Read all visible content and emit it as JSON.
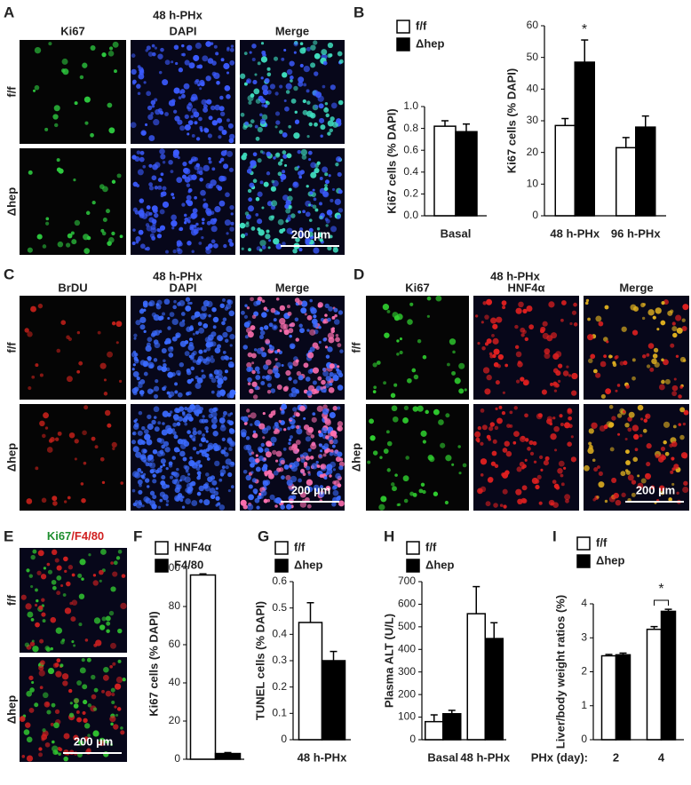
{
  "panel_labels": [
    "A",
    "B",
    "C",
    "D",
    "E",
    "F",
    "G",
    "H",
    "I"
  ],
  "microscopy": [
    {
      "title": "48 h-PHx",
      "channels": [
        "Ki67",
        "DAPI",
        "Merge"
      ],
      "rows": [
        "f/f",
        "Δhep"
      ],
      "scale_bar": "200 µm"
    },
    {
      "title": "48 h-PHx",
      "channels": [
        "BrDU",
        "DAPI",
        "Merge"
      ],
      "rows": [
        "f/f",
        "Δhep"
      ],
      "scale_bar": "200 µm"
    },
    {
      "title": "48 h-PHx",
      "channels": [
        "Ki67",
        "HNF4α",
        "Merge"
      ],
      "rows": [
        "f/f",
        "Δhep"
      ],
      "scale_bar": "200 µm"
    },
    {
      "channels": [
        "Ki67",
        "/F4/80"
      ],
      "rows": [
        "f/f",
        "Δhep"
      ],
      "scale_bar": "200 µm"
    }
  ],
  "chart_data": [
    {
      "type": "bar",
      "y_label": "Ki67 cells (% DAPI)",
      "categories": [
        "Basal"
      ],
      "series": [
        {
          "name": "f/f",
          "color": "#ffffff",
          "values": [
            0.82
          ],
          "errors": [
            0.05
          ]
        },
        {
          "name": "Δhep",
          "color": "#000000",
          "values": [
            0.77
          ],
          "errors": [
            0.07
          ]
        }
      ],
      "ylim": [
        0,
        1.0
      ],
      "yticks": [
        {
          "value": 0,
          "label": "0.0"
        },
        0.2,
        0.4,
        0.6,
        0.8,
        {
          "value": 1.0,
          "label": "1.0"
        }
      ],
      "legend": "top-left"
    },
    {
      "type": "bar",
      "y_label": "Ki67 cells (% DAPI)",
      "categories": [
        "48 h-PHx",
        "96 h-PHx"
      ],
      "series": [
        {
          "color": "#ffffff",
          "values": [
            28.5,
            21.5
          ],
          "errors": [
            2.2,
            3.2
          ]
        },
        {
          "color": "#000000",
          "values": [
            48.5,
            28
          ],
          "errors": [
            7,
            3.5
          ]
        }
      ],
      "ylim": [
        0,
        60
      ],
      "yticks": [
        0,
        10,
        20,
        30,
        40,
        50,
        60
      ],
      "annotations": [
        "*"
      ]
    },
    {
      "type": "bar",
      "y_label": "Ki67 cells (% DAPI)",
      "series": [
        {
          "name": "HNF4α",
          "color": "#ffffff",
          "values": [
            96.5
          ],
          "errors": [
            0.6
          ]
        },
        {
          "name": "F4/80",
          "color": "#000000",
          "values": [
            3
          ],
          "errors": [
            0.5
          ]
        }
      ],
      "ylim": [
        0,
        100
      ],
      "yticks": [
        0,
        20,
        40,
        60,
        80,
        100
      ],
      "legend": "top-left"
    },
    {
      "type": "bar",
      "y_label": "TUNEL cells (% DAPI)",
      "categories": [
        "48 h-PHx"
      ],
      "series": [
        {
          "name": "f/f",
          "color": "#ffffff",
          "values": [
            0.445
          ],
          "errors": [
            0.075
          ]
        },
        {
          "name": "Δhep",
          "color": "#000000",
          "values": [
            0.3
          ],
          "errors": [
            0.035
          ]
        }
      ],
      "ylim": [
        0,
        0.6
      ],
      "yticks": [
        0,
        0.1,
        0.2,
        0.3,
        0.4,
        0.5,
        0.6
      ],
      "legend": "top-left"
    },
    {
      "type": "bar",
      "y_label": "Plasma ALT  (U/L)",
      "categories": [
        "Basal",
        "48 h-PHx"
      ],
      "series": [
        {
          "name": "f/f",
          "color": "#ffffff",
          "values": [
            80,
            558
          ],
          "errors": [
            30,
            120
          ]
        },
        {
          "name": "Δhep",
          "color": "#000000",
          "values": [
            115,
            448
          ],
          "errors": [
            15,
            70
          ]
        }
      ],
      "ylim": [
        0,
        700
      ],
      "yticks": [
        0,
        100,
        200,
        300,
        400,
        500,
        600,
        700
      ],
      "legend": "top-left"
    },
    {
      "type": "bar",
      "y_label": "Liver/body weight ratios (%)",
      "x_label": "PHx (day):",
      "categories": [
        "2",
        "4"
      ],
      "series": [
        {
          "name": "f/f",
          "color": "#ffffff",
          "values": [
            2.47,
            3.25
          ],
          "errors": [
            0.04,
            0.08
          ]
        },
        {
          "name": "Δhep",
          "color": "#000000",
          "values": [
            2.5,
            3.78
          ],
          "errors": [
            0.05,
            0.06
          ]
        }
      ],
      "ylim": [
        0,
        4
      ],
      "yticks": [
        0,
        1,
        2,
        3,
        4
      ],
      "legend": "top-left",
      "annotations": [
        "*"
      ]
    }
  ]
}
